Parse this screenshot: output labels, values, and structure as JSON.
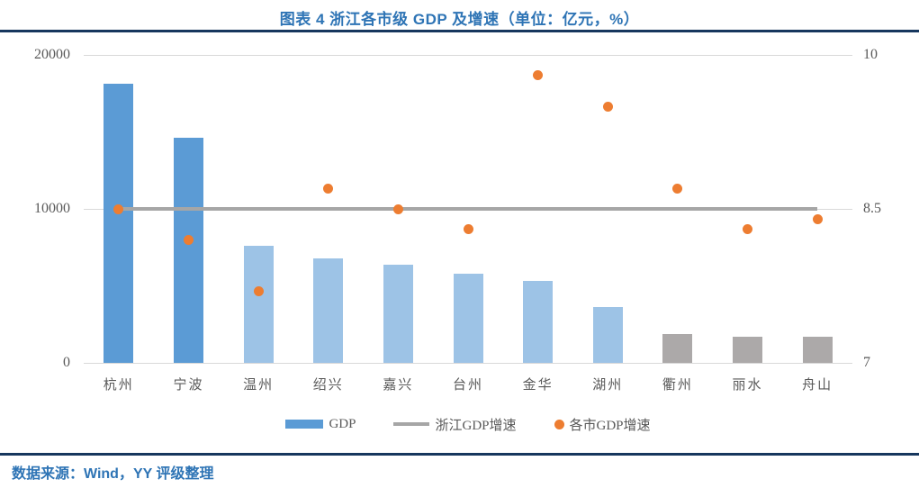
{
  "title": "图表 4 浙江各市级 GDP 及增速（单位：亿元，%）",
  "footer": {
    "source_label": "数据来源：Wind，YY 评级整理"
  },
  "colors": {
    "accent_blue": "#2E74B5",
    "divider_navy": "#17375E",
    "bar_blue": "#5B9BD5",
    "bar_light_blue": "#9DC3E6",
    "bar_gray": "#ACA9A9",
    "dot_orange": "#ED7D31",
    "line_gray": "#A6A6A6",
    "gridline": "#D9D9D9",
    "axis_text": "#595959"
  },
  "chart_data": {
    "type": "bar",
    "subtype": "combo bar + scatter + constant line, dual axis",
    "title": "图表 4 浙江各市级 GDP 及增速（单位：亿元，%）",
    "categories": [
      "杭州",
      "宁波",
      "温州",
      "绍兴",
      "嘉兴",
      "台州",
      "金华",
      "湖州",
      "衢州",
      "丽水",
      "舟山"
    ],
    "series": [
      {
        "name": "GDP",
        "type": "bar",
        "axis": "left",
        "values": [
          18100,
          14600,
          7590,
          6800,
          6360,
          5790,
          5350,
          3650,
          1880,
          1710,
          1700
        ],
        "colors": [
          "#5B9BD5",
          "#5B9BD5",
          "#9DC3E6",
          "#9DC3E6",
          "#9DC3E6",
          "#9DC3E6",
          "#9DC3E6",
          "#9DC3E6",
          "#ACA9A9",
          "#ACA9A9",
          "#ACA9A9"
        ]
      },
      {
        "name": "浙江GDP增速",
        "type": "line",
        "axis": "right",
        "constant_value": 8.5,
        "color": "#A6A6A6"
      },
      {
        "name": "各市GDP增速",
        "type": "scatter",
        "axis": "right",
        "values": [
          8.5,
          8.2,
          7.7,
          8.7,
          8.5,
          8.3,
          9.8,
          9.5,
          8.7,
          8.3,
          8.4
        ],
        "color": "#ED7D31"
      }
    ],
    "left_axis": {
      "min": 0,
      "max": 20000,
      "ticks": [
        0,
        10000,
        20000
      ]
    },
    "right_axis": {
      "min": 7,
      "max": 10,
      "ticks": [
        7,
        8.5,
        10
      ]
    },
    "grid": true,
    "legend_position": "bottom"
  }
}
